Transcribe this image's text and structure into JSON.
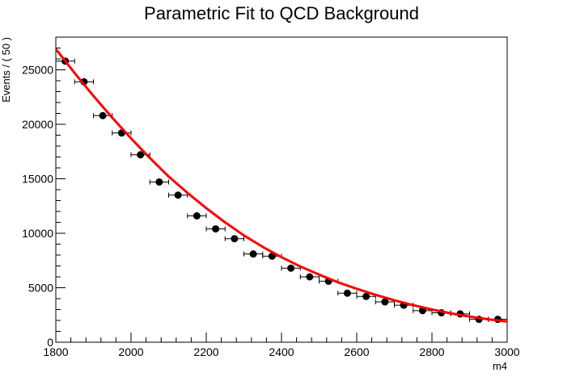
{
  "chart_data": {
    "type": "scatter",
    "title": "Parametric Fit to QCD Background",
    "xlabel": "m4",
    "ylabel": "Events / ( 50 )",
    "xlim": [
      1800,
      3000
    ],
    "ylim": [
      0,
      28000
    ],
    "x_ticks": [
      1800,
      2000,
      2200,
      2400,
      2600,
      2800,
      3000
    ],
    "y_ticks": [
      0,
      5000,
      10000,
      15000,
      20000,
      25000
    ],
    "x_bin_half_width": 25,
    "grid": false,
    "colors": {
      "points": "#000000",
      "fit": "#ff0000"
    },
    "series": [
      {
        "type": "points_with_errors",
        "x": [
          1825,
          1875,
          1925,
          1975,
          2025,
          2075,
          2125,
          2175,
          2225,
          2275,
          2325,
          2375,
          2425,
          2475,
          2525,
          2575,
          2625,
          2675,
          2725,
          2775,
          2825,
          2875,
          2925,
          2975
        ],
        "y": [
          25800,
          23900,
          20800,
          19200,
          17200,
          14700,
          13500,
          11600,
          10400,
          9500,
          8100,
          7900,
          6800,
          6000,
          5600,
          4500,
          4200,
          3700,
          3400,
          2900,
          2700,
          2600,
          2100,
          2100
        ],
        "y_err": [
          160,
          155,
          144,
          139,
          131,
          121,
          116,
          108,
          102,
          97,
          90,
          89,
          82,
          77,
          75,
          67,
          65,
          61,
          58,
          54,
          52,
          51,
          46,
          46
        ]
      },
      {
        "type": "fit_curve",
        "x": [
          1800,
          1850,
          1900,
          1950,
          2000,
          2050,
          2100,
          2150,
          2200,
          2250,
          2300,
          2350,
          2400,
          2450,
          2500,
          2550,
          2600,
          2650,
          2700,
          2750,
          2800,
          2850,
          2900,
          2950,
          3000
        ],
        "y": [
          26900,
          24700,
          22600,
          20600,
          18700,
          16900,
          15200,
          13700,
          12300,
          11000,
          9800,
          8750,
          7800,
          6950,
          6200,
          5500,
          4900,
          4350,
          3850,
          3400,
          3000,
          2650,
          2350,
          2100,
          1900
        ]
      }
    ]
  }
}
